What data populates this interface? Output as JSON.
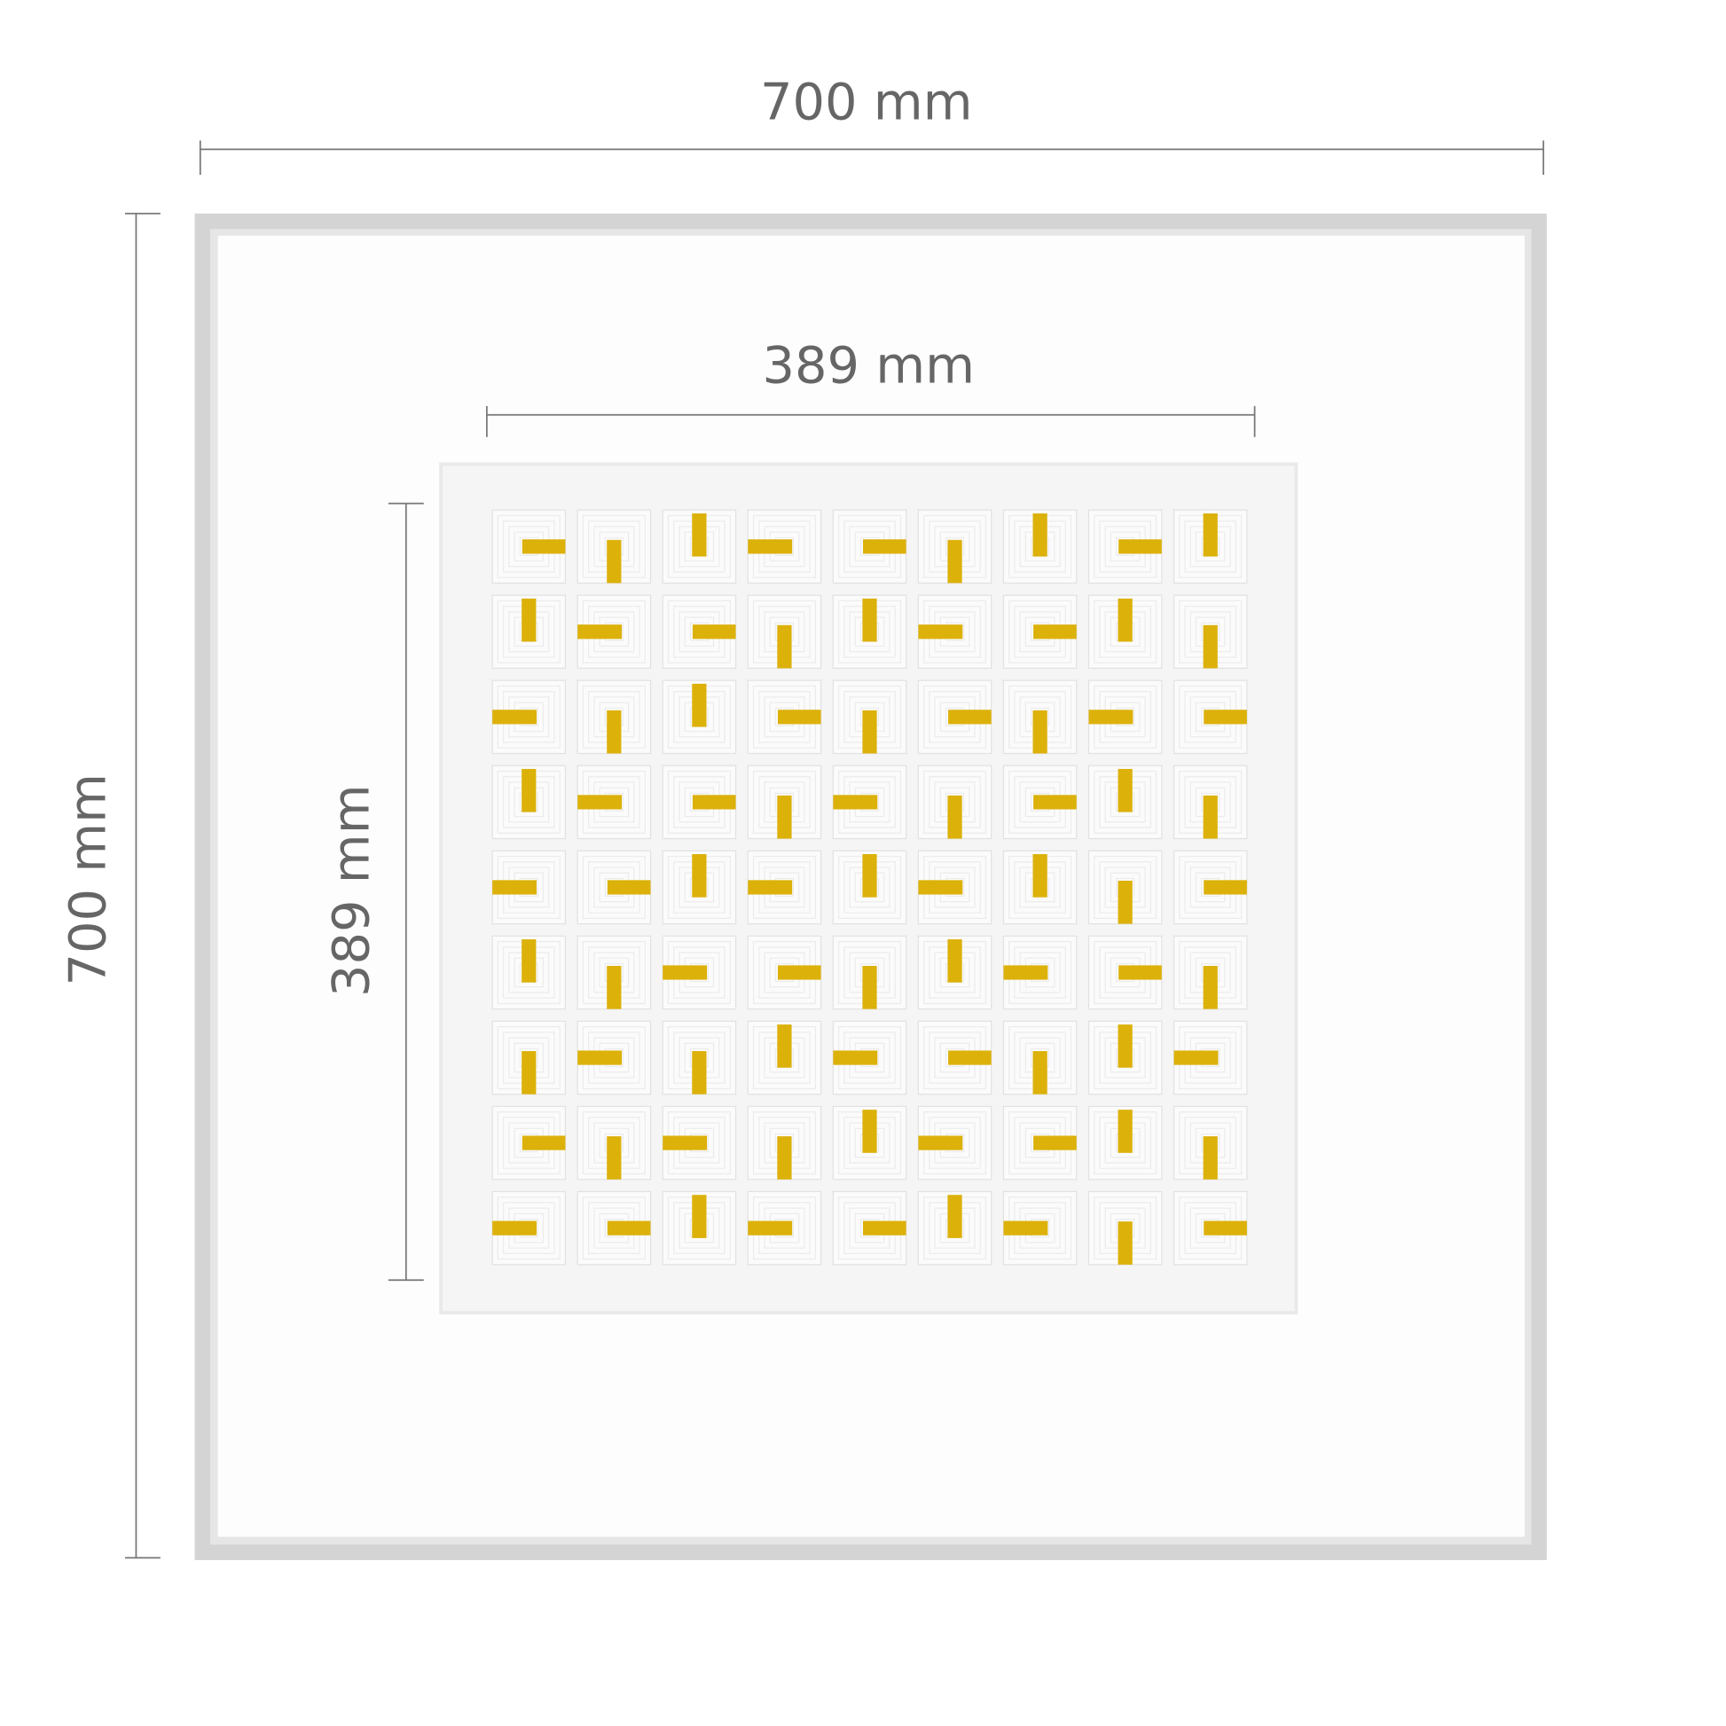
{
  "dimensions": {
    "frame_width": "700 mm",
    "frame_height": "700 mm",
    "artwork_width": "389 mm",
    "artwork_height": "389 mm"
  },
  "colors": {
    "frame": "#d4d4d4",
    "mat": "#ffffff",
    "artwork_paper": "#f5f5f5",
    "gold_leaf": "#dcb10a",
    "dimension_line": "#777777",
    "dimension_text": "#666666"
  },
  "artwork": {
    "grid_rows": 9,
    "grid_cols": 9,
    "bar_pattern_legend": {
      "L": "horizontal-left",
      "R": "horizontal-right",
      "T": "vertical-top",
      "B": "vertical-bottom"
    },
    "bar_pattern": [
      [
        "R",
        "B",
        "T",
        "L",
        "R",
        "B",
        "T",
        "R",
        "T"
      ],
      [
        "T",
        "L",
        "R",
        "B",
        "T",
        "L",
        "R",
        "T",
        "B"
      ],
      [
        "L",
        "B",
        "T",
        "R",
        "B",
        "R",
        "B",
        "L",
        "R"
      ],
      [
        "T",
        "L",
        "R",
        "B",
        "L",
        "B",
        "R",
        "T",
        "B"
      ],
      [
        "L",
        "R",
        "T",
        "L",
        "T",
        "L",
        "T",
        "B",
        "R"
      ],
      [
        "T",
        "B",
        "L",
        "R",
        "B",
        "T",
        "L",
        "R",
        "B"
      ],
      [
        "B",
        "L",
        "B",
        "T",
        "L",
        "R",
        "B",
        "T",
        "L"
      ],
      [
        "R",
        "B",
        "L",
        "B",
        "T",
        "L",
        "R",
        "T",
        "B"
      ],
      [
        "L",
        "R",
        "T",
        "L",
        "R",
        "T",
        "L",
        "B",
        "R"
      ]
    ]
  }
}
